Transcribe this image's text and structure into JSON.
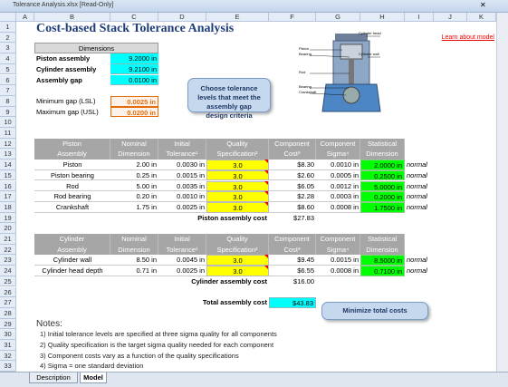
{
  "window_title": "Tolerance Analysis.xlsx  [Read-Only]",
  "columns": [
    "A",
    "B",
    "C",
    "D",
    "E",
    "F",
    "G",
    "H",
    "I",
    "J",
    "K"
  ],
  "row_numbers": [
    1,
    2,
    3,
    4,
    5,
    6,
    7,
    8,
    9,
    10,
    11,
    12,
    13,
    14,
    15,
    16,
    17,
    18,
    19,
    20,
    21,
    22,
    23,
    24,
    25,
    26,
    27,
    28,
    29,
    30,
    31,
    32,
    33
  ],
  "sheet_title": "Cost-based Stack Tolerance Analysis",
  "link": "Learn about model",
  "dimensions": {
    "header": "Dimensions",
    "items": [
      {
        "label": "Piston assembly",
        "value": "9.2000 in"
      },
      {
        "label": "Cylinder assembly",
        "value": "9.2100 in"
      },
      {
        "label": "Assembly gap",
        "value": "0.0100 in"
      }
    ]
  },
  "gaps": [
    {
      "label": "Minimum gap (LSL)",
      "value": "0.0025 in"
    },
    {
      "label": "Maximum gap (USL)",
      "value": "0.0200 in"
    }
  ],
  "callout_tolerance": "Choose tolerance levels that meet the assembly gap design criteria",
  "callout_cost": "Minimize total costs",
  "diagram": {
    "piston": "Piston",
    "bearing_top": "Bearing",
    "rod": "Rod",
    "bearing_bottom": "Bearing",
    "crankshaft": "Crankshaft",
    "cylinder_head": "Cylinder head",
    "cylinder_wall": "Cylinder wall"
  },
  "piston_table": {
    "header": [
      [
        "Piston",
        "Nominal",
        "Initial",
        "Quality",
        "Component",
        "Component",
        "Statistical"
      ],
      [
        "Assembly",
        "Dimension",
        "Tolerance¹",
        "Specification²",
        "Cost³",
        "Sigma⁴",
        "Dimension"
      ]
    ],
    "rows": [
      [
        "Piston",
        "2.00 in",
        "0.0030 in",
        "3.0",
        "$8.30",
        "0.0010 in",
        "2.0000 in",
        "normal"
      ],
      [
        "Piston bearing",
        "0.25 in",
        "0.0015 in",
        "3.0",
        "$2.60",
        "0.0005 in",
        "0.2500 in",
        "normal"
      ],
      [
        "Rod",
        "5.00 in",
        "0.0035 in",
        "3.0",
        "$6.05",
        "0.0012 in",
        "5.0000 in",
        "normal"
      ],
      [
        "Rod bearing",
        "0.20 in",
        "0.0010 in",
        "3.0",
        "$2.28",
        "0.0003 in",
        "0.2000 in",
        "normal"
      ],
      [
        "Crankshaft",
        "1.75 in",
        "0.0025 in",
        "3.0",
        "$8.60",
        "0.0008 in",
        "1.7500 in",
        "normal"
      ]
    ],
    "total_label": "Piston assembly cost",
    "total": "$27.83"
  },
  "cylinder_table": {
    "header": [
      [
        "Cylinder",
        "Nominal",
        "Initial",
        "Quality",
        "Component",
        "Component",
        "Statistical"
      ],
      [
        "Assembly",
        "Dimension",
        "Tolerance¹",
        "Specification²",
        "Cost³",
        "Sigma⁴",
        "Dimension"
      ]
    ],
    "rows": [
      [
        "Cylinder wall",
        "8.50 in",
        "0.0045 in",
        "3.0",
        "$9.45",
        "0.0015 in",
        "8.5000 in",
        "normal"
      ],
      [
        "Cylinder head depth",
        "0.71 in",
        "0.0025 in",
        "3.0",
        "$6.55",
        "0.0008 in",
        "0.7100 in",
        "normal"
      ]
    ],
    "total_label": "Cylinder assembly cost",
    "total": "$16.00"
  },
  "grand_total": {
    "label": "Total assembly cost",
    "value": "$43.83"
  },
  "notes": {
    "title": "Notes:",
    "items": [
      "1)  Initial tolerance levels are specified at three sigma quality for all components",
      "2)  Quality specification is the target sigma quality needed for each component",
      "3)  Component costs vary as a function of the quality specifications",
      "4)  Sigma = one standard deviation"
    ]
  },
  "tabs": [
    "Description",
    "Model"
  ]
}
